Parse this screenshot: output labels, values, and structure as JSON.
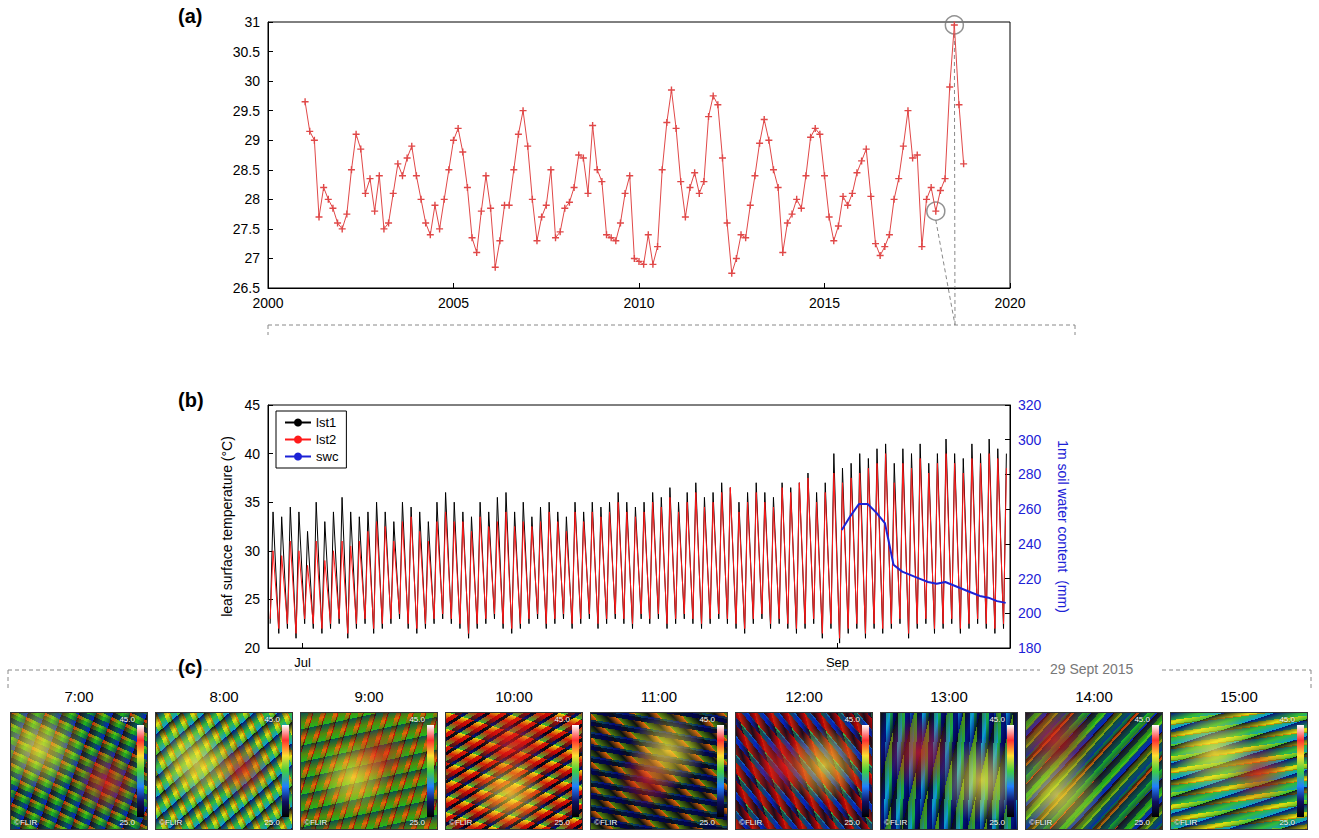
{
  "chart_data": [
    {
      "type": "line",
      "title": "(a)",
      "color": "#e04848",
      "marker": "plus",
      "grid": false,
      "xlim": [
        2000,
        2020
      ],
      "xticks": [
        2000,
        2005,
        2010,
        2015,
        2020
      ],
      "ylim": [
        26.5,
        31
      ],
      "yticks": [
        26.5,
        27,
        27.5,
        28,
        28.5,
        29,
        29.5,
        30,
        30.5,
        31
      ],
      "circled_x": [
        2018,
        2018.5
      ],
      "x": [
        2001,
        2001.125,
        2001.25,
        2001.375,
        2001.5,
        2001.625,
        2001.75,
        2001.875,
        2002,
        2002.125,
        2002.25,
        2002.375,
        2002.5,
        2002.625,
        2002.75,
        2002.875,
        2003,
        2003.125,
        2003.25,
        2003.375,
        2003.5,
        2003.625,
        2003.75,
        2003.875,
        2004,
        2004.125,
        2004.25,
        2004.375,
        2004.5,
        2004.625,
        2004.75,
        2004.875,
        2005,
        2005.125,
        2005.25,
        2005.375,
        2005.5,
        2005.625,
        2005.75,
        2005.875,
        2006,
        2006.125,
        2006.25,
        2006.375,
        2006.5,
        2006.625,
        2006.75,
        2006.875,
        2007,
        2007.125,
        2007.25,
        2007.375,
        2007.5,
        2007.625,
        2007.75,
        2007.875,
        2008,
        2008.125,
        2008.25,
        2008.375,
        2008.5,
        2008.625,
        2008.75,
        2008.875,
        2009,
        2009.125,
        2009.25,
        2009.375,
        2009.5,
        2009.625,
        2009.75,
        2009.875,
        2010,
        2010.125,
        2010.25,
        2010.375,
        2010.5,
        2010.625,
        2010.75,
        2010.875,
        2011,
        2011.125,
        2011.25,
        2011.375,
        2011.5,
        2011.625,
        2011.75,
        2011.875,
        2012,
        2012.125,
        2012.25,
        2012.375,
        2012.5,
        2012.625,
        2012.75,
        2012.875,
        2013,
        2013.125,
        2013.25,
        2013.375,
        2013.5,
        2013.625,
        2013.75,
        2013.875,
        2014,
        2014.125,
        2014.25,
        2014.375,
        2014.5,
        2014.625,
        2014.75,
        2014.875,
        2015,
        2015.125,
        2015.25,
        2015.375,
        2015.5,
        2015.625,
        2015.75,
        2015.875,
        2016,
        2016.125,
        2016.25,
        2016.375,
        2016.5,
        2016.625,
        2016.75,
        2016.875,
        2017,
        2017.125,
        2017.25,
        2017.375,
        2017.5,
        2017.625,
        2017.75,
        2017.875,
        2018,
        2018.125,
        2018.25,
        2018.375,
        2018.5,
        2018.625,
        2018.75
      ],
      "values": [
        29.65,
        29.15,
        29.0,
        27.7,
        28.2,
        28.0,
        27.85,
        27.6,
        27.5,
        27.75,
        28.5,
        29.1,
        28.85,
        28.1,
        28.35,
        27.8,
        28.4,
        27.5,
        27.6,
        28.1,
        28.6,
        28.4,
        28.7,
        28.9,
        28.4,
        28.0,
        27.6,
        27.4,
        27.9,
        27.5,
        28.0,
        28.5,
        29.0,
        29.2,
        28.8,
        28.2,
        27.35,
        27.1,
        27.8,
        28.4,
        27.85,
        26.85,
        27.3,
        27.9,
        27.9,
        28.5,
        29.1,
        29.5,
        28.9,
        28.0,
        27.3,
        27.7,
        27.9,
        28.5,
        27.35,
        27.45,
        27.85,
        27.95,
        28.2,
        28.75,
        28.7,
        28.1,
        29.25,
        28.5,
        28.3,
        27.4,
        27.35,
        27.3,
        27.6,
        28.1,
        28.4,
        27.0,
        26.95,
        26.9,
        27.4,
        26.9,
        27.2,
        28.5,
        29.3,
        29.85,
        29.2,
        28.3,
        27.7,
        28.2,
        28.45,
        28.1,
        28.3,
        29.4,
        29.75,
        29.6,
        28.7,
        27.6,
        26.75,
        27.0,
        27.4,
        27.35,
        27.9,
        28.4,
        28.95,
        29.35,
        29.0,
        28.5,
        28.2,
        27.1,
        27.6,
        27.75,
        28.0,
        27.85,
        28.4,
        29.05,
        29.2,
        29.1,
        28.4,
        27.7,
        27.3,
        27.55,
        28.05,
        27.9,
        28.1,
        28.45,
        28.65,
        28.85,
        28.05,
        27.25,
        27.05,
        27.2,
        27.4,
        28.0,
        28.35,
        28.9,
        29.5,
        28.7,
        28.75,
        27.2,
        28.0,
        28.2,
        27.8,
        28.15,
        28.35,
        29.9,
        30.95,
        29.6,
        28.6
      ]
    },
    {
      "type": "line",
      "title": "(b)",
      "grid": false,
      "legend": "upper left",
      "ylabel": "leaf surface temperature (°C)",
      "ylim": [
        20,
        45
      ],
      "yticks": [
        20,
        25,
        30,
        35,
        40,
        45
      ],
      "y2label": "1m soil water content  (mm)",
      "y2lim": [
        180,
        320
      ],
      "y2ticks": [
        180,
        200,
        220,
        240,
        260,
        280,
        300,
        320
      ],
      "xlim": [
        "2015-06-27T00:00",
        "2015-09-21T00:00"
      ],
      "xticks": [
        {
          "value": "2015-07-01T00:00",
          "label": "Jul"
        },
        {
          "value": "2015-09-01T00:00",
          "label": "Sep"
        }
      ],
      "x": [
        "2015-06-27T06:00",
        "2015-06-27T14:00",
        "2015-06-28T06:00",
        "2015-06-28T14:00",
        "2015-06-29T06:00",
        "2015-06-29T14:00",
        "2015-06-30T06:00",
        "2015-06-30T14:00",
        "2015-07-01T06:00",
        "2015-07-01T14:00",
        "2015-07-02T06:00",
        "2015-07-02T14:00",
        "2015-07-03T06:00",
        "2015-07-03T14:00",
        "2015-07-04T06:00",
        "2015-07-04T14:00",
        "2015-07-05T06:00",
        "2015-07-05T14:00",
        "2015-07-06T06:00",
        "2015-07-06T14:00",
        "2015-07-07T06:00",
        "2015-07-07T14:00",
        "2015-07-08T06:00",
        "2015-07-08T14:00",
        "2015-07-09T06:00",
        "2015-07-09T14:00",
        "2015-07-10T06:00",
        "2015-07-10T14:00",
        "2015-07-11T06:00",
        "2015-07-11T14:00",
        "2015-07-12T06:00",
        "2015-07-12T14:00",
        "2015-07-13T06:00",
        "2015-07-13T14:00",
        "2015-07-14T06:00",
        "2015-07-14T14:00",
        "2015-07-15T06:00",
        "2015-07-15T14:00",
        "2015-07-16T06:00",
        "2015-07-16T14:00",
        "2015-07-17T06:00",
        "2015-07-17T14:00",
        "2015-07-18T06:00",
        "2015-07-18T14:00",
        "2015-07-19T06:00",
        "2015-07-19T14:00",
        "2015-07-20T06:00",
        "2015-07-20T14:00",
        "2015-07-21T06:00",
        "2015-07-21T14:00",
        "2015-07-22T06:00",
        "2015-07-22T14:00",
        "2015-07-23T06:00",
        "2015-07-23T14:00",
        "2015-07-24T06:00",
        "2015-07-24T14:00",
        "2015-07-25T06:00",
        "2015-07-25T14:00",
        "2015-07-26T06:00",
        "2015-07-26T14:00",
        "2015-07-27T06:00",
        "2015-07-27T14:00",
        "2015-07-28T06:00",
        "2015-07-28T14:00",
        "2015-07-29T06:00",
        "2015-07-29T14:00",
        "2015-07-30T06:00",
        "2015-07-30T14:00",
        "2015-07-31T06:00",
        "2015-07-31T14:00",
        "2015-08-01T06:00",
        "2015-08-01T14:00",
        "2015-08-02T06:00",
        "2015-08-02T14:00",
        "2015-08-03T06:00",
        "2015-08-03T14:00",
        "2015-08-04T06:00",
        "2015-08-04T14:00",
        "2015-08-05T06:00",
        "2015-08-05T14:00",
        "2015-08-06T06:00",
        "2015-08-06T14:00",
        "2015-08-07T06:00",
        "2015-08-07T14:00",
        "2015-08-08T06:00",
        "2015-08-08T14:00",
        "2015-08-09T06:00",
        "2015-08-09T14:00",
        "2015-08-10T06:00",
        "2015-08-10T14:00",
        "2015-08-11T06:00",
        "2015-08-11T14:00",
        "2015-08-12T06:00",
        "2015-08-12T14:00",
        "2015-08-13T06:00",
        "2015-08-13T14:00",
        "2015-08-14T06:00",
        "2015-08-14T14:00",
        "2015-08-15T06:00",
        "2015-08-15T14:00",
        "2015-08-16T06:00",
        "2015-08-16T14:00",
        "2015-08-17T06:00",
        "2015-08-17T14:00",
        "2015-08-18T06:00",
        "2015-08-18T14:00",
        "2015-08-19T06:00",
        "2015-08-19T14:00",
        "2015-08-20T06:00",
        "2015-08-20T14:00",
        "2015-08-21T06:00",
        "2015-08-21T14:00",
        "2015-08-22T06:00",
        "2015-08-22T14:00",
        "2015-08-23T06:00",
        "2015-08-23T14:00",
        "2015-08-24T06:00",
        "2015-08-24T14:00",
        "2015-08-25T06:00",
        "2015-08-25T14:00",
        "2015-08-26T06:00",
        "2015-08-26T14:00",
        "2015-08-27T06:00",
        "2015-08-27T14:00",
        "2015-08-28T06:00",
        "2015-08-28T14:00",
        "2015-08-29T06:00",
        "2015-08-29T14:00",
        "2015-08-30T06:00",
        "2015-08-30T14:00",
        "2015-08-31T06:00",
        "2015-08-31T14:00",
        "2015-09-01T06:00",
        "2015-09-01T14:00",
        "2015-09-02T06:00",
        "2015-09-02T14:00",
        "2015-09-03T06:00",
        "2015-09-03T14:00",
        "2015-09-04T06:00",
        "2015-09-04T14:00",
        "2015-09-05T06:00",
        "2015-09-05T14:00",
        "2015-09-06T06:00",
        "2015-09-06T14:00",
        "2015-09-07T06:00",
        "2015-09-07T14:00",
        "2015-09-08T06:00",
        "2015-09-08T14:00",
        "2015-09-09T06:00",
        "2015-09-09T14:00",
        "2015-09-10T06:00",
        "2015-09-10T14:00",
        "2015-09-11T06:00",
        "2015-09-11T14:00",
        "2015-09-12T06:00",
        "2015-09-12T14:00",
        "2015-09-13T06:00",
        "2015-09-13T14:00",
        "2015-09-14T06:00",
        "2015-09-14T14:00",
        "2015-09-15T06:00",
        "2015-09-15T14:00",
        "2015-09-16T06:00",
        "2015-09-16T14:00",
        "2015-09-17T06:00",
        "2015-09-17T14:00",
        "2015-09-18T06:00",
        "2015-09-18T14:00",
        "2015-09-19T06:00",
        "2015-09-19T14:00",
        "2015-09-20T06:00",
        "2015-09-20T14:00"
      ],
      "series": [
        {
          "name": "lst1",
          "color": "#000000",
          "values": [
            22.5,
            34,
            21.5,
            33.5,
            22,
            34.5,
            21,
            34,
            22.5,
            32,
            22,
            35,
            21.5,
            33,
            22,
            34,
            22.5,
            35.5,
            21,
            34,
            22,
            33.5,
            22.5,
            34,
            21.5,
            35,
            22,
            34,
            22.5,
            33,
            23,
            35,
            22,
            34.5,
            21.5,
            34,
            22,
            33,
            22.5,
            35,
            23,
            36,
            22.5,
            35,
            22,
            34,
            21,
            33.5,
            22,
            35,
            22.5,
            34,
            23,
            35.5,
            22,
            36,
            21.5,
            34,
            22,
            35,
            22.5,
            33.5,
            23,
            34.5,
            22,
            35,
            22.5,
            34,
            23,
            33.5,
            22,
            35,
            22.5,
            34,
            23,
            35,
            22,
            34.5,
            22.5,
            35,
            23,
            36,
            22.5,
            35,
            22,
            34.5,
            23,
            35,
            22.5,
            36,
            23,
            35.5,
            22,
            36.5,
            22.5,
            35,
            23,
            36,
            22.5,
            37,
            22,
            35.5,
            22.5,
            36,
            23,
            37,
            22.5,
            36.5,
            22,
            35,
            21.5,
            36,
            22.5,
            37,
            23,
            36,
            22,
            35.5,
            22.5,
            37,
            22,
            36.5,
            21.5,
            37,
            22,
            38,
            22.5,
            36,
            21,
            37,
            22,
            40,
            20.5,
            38.5,
            21.5,
            39,
            22,
            40,
            21,
            39.5,
            22,
            40.5,
            21.5,
            41,
            22,
            39,
            22.5,
            40.5,
            21,
            40,
            22,
            41,
            22.5,
            39,
            21.5,
            40,
            22,
            41.5,
            22.5,
            40,
            21.5,
            39.5,
            22,
            41,
            22.5,
            40,
            22,
            41.5,
            21.5,
            40.5,
            22,
            40
          ]
        },
        {
          "name": "lst2",
          "color": "#ff1a1a",
          "values": [
            23,
            30,
            22,
            29.5,
            22.5,
            31,
            21.5,
            30,
            23,
            28.5,
            22.5,
            31,
            22,
            29,
            22.5,
            30,
            23,
            31,
            21.5,
            30.5,
            22.5,
            31,
            23,
            32,
            22,
            33,
            22.5,
            32.5,
            23,
            31,
            23.5,
            33,
            22.5,
            33.5,
            22,
            32,
            22.5,
            31,
            23,
            33,
            23.5,
            34,
            23,
            33,
            22.5,
            33,
            21.5,
            32,
            22.5,
            33.5,
            23,
            32.5,
            23.5,
            33,
            22.5,
            34,
            22,
            32.5,
            22.5,
            33,
            23,
            32.5,
            23.5,
            33,
            22.5,
            34,
            23,
            33,
            23.5,
            32,
            22.5,
            34,
            23,
            33,
            23.5,
            34,
            22.5,
            33.5,
            23,
            34,
            23.5,
            35,
            23,
            34,
            22.5,
            33.5,
            23.5,
            34,
            23,
            35,
            23.5,
            34.5,
            22.5,
            35.5,
            23,
            34,
            23.5,
            35,
            23,
            36,
            22.5,
            34.5,
            23,
            35,
            23.5,
            36,
            23,
            36.5,
            22.5,
            34,
            22,
            35,
            23,
            36,
            23.5,
            35,
            22.5,
            34.5,
            23,
            36.5,
            22.5,
            36,
            22,
            37,
            22.5,
            37.5,
            23,
            35,
            21.5,
            36,
            22.5,
            38,
            21,
            37,
            22,
            37.5,
            22.5,
            38,
            21.5,
            38.5,
            22.5,
            39,
            22,
            40,
            22.5,
            37,
            23,
            39,
            21.5,
            38.5,
            22.5,
            39.5,
            23,
            38,
            22,
            39,
            22.5,
            40,
            23,
            39,
            22,
            38,
            22.5,
            39.5,
            23,
            39,
            22.5,
            40,
            22,
            39.5,
            22.5,
            38.5
          ]
        },
        {
          "name": "swc",
          "color": "#1c22d6",
          "axis": "y2",
          "x": [
            "2015-09-01T12:00",
            "2015-09-02T12:00",
            "2015-09-03T12:00",
            "2015-09-04T12:00",
            "2015-09-05T12:00",
            "2015-09-06T12:00",
            "2015-09-07T12:00",
            "2015-09-08T12:00",
            "2015-09-09T12:00",
            "2015-09-10T12:00",
            "2015-09-11T12:00",
            "2015-09-12T12:00",
            "2015-09-13T12:00",
            "2015-09-14T12:00",
            "2015-09-15T12:00",
            "2015-09-16T12:00",
            "2015-09-17T12:00",
            "2015-09-18T12:00",
            "2015-09-19T12:00",
            "2015-09-20T12:00"
          ],
          "values": [
            248,
            256,
            263,
            263,
            258,
            252,
            228,
            224,
            222,
            220,
            218,
            217,
            218,
            216,
            214,
            212,
            210,
            209,
            207,
            206
          ]
        }
      ]
    },
    {
      "type": "images",
      "title": "(c)",
      "date": "29 Sept 2015",
      "times": [
        "7:00",
        "8:00",
        "9:00",
        "10:00",
        "11:00",
        "12:00",
        "13:00",
        "14:00",
        "15:00"
      ],
      "scale_max_label": "45.0",
      "scale_min_label": "25.0",
      "logo": "©FLIR"
    }
  ]
}
